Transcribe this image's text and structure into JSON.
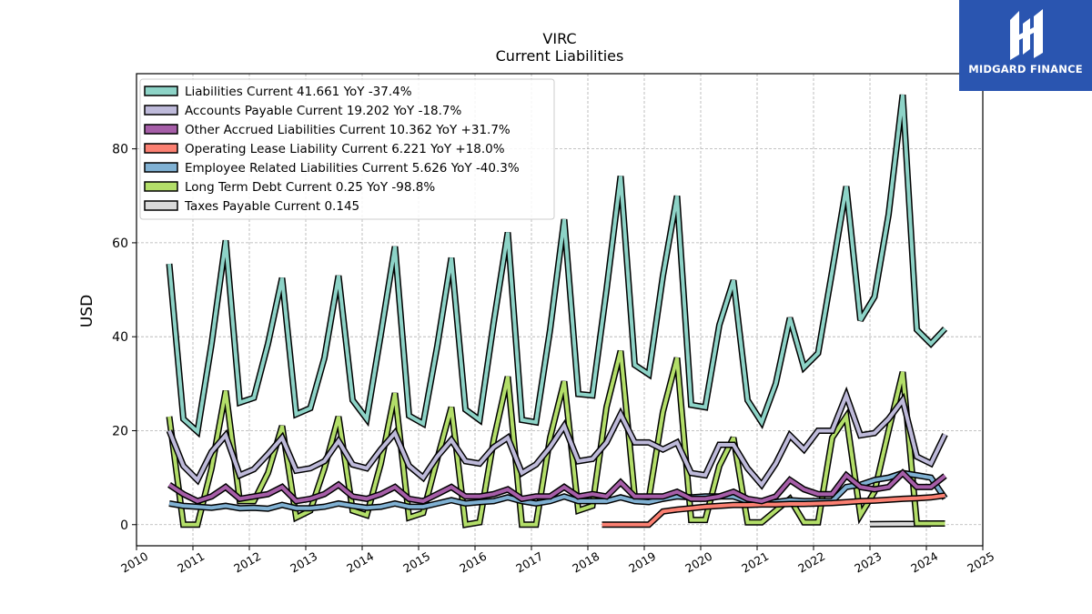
{
  "chart_data": {
    "type": "line",
    "title": "VIRC",
    "subtitle": "Current  Liabilities",
    "ylabel": "USD",
    "xlabel": "",
    "xlim": [
      2010,
      2025
    ],
    "ylim": [
      -4.5,
      96
    ],
    "x_ticks": [
      "2010",
      "2011",
      "2012",
      "2013",
      "2014",
      "2015",
      "2016",
      "2017",
      "2018",
      "2019",
      "2020",
      "2021",
      "2022",
      "2023",
      "2024",
      "2025"
    ],
    "y_ticks": [
      "0",
      "20",
      "40",
      "60",
      "80"
    ],
    "grid": true,
    "legend_position": "top-left",
    "series": [
      {
        "name": "Liabilities Current",
        "legend": "Liabilities Current  41.661 YoY -37.4%",
        "color": "#8dd3c7",
        "x": [
          2010.58,
          2010.83,
          2011.08,
          2011.33,
          2011.58,
          2011.83,
          2012.08,
          2012.33,
          2012.58,
          2012.83,
          2013.08,
          2013.33,
          2013.58,
          2013.83,
          2014.08,
          2014.33,
          2014.58,
          2014.83,
          2015.08,
          2015.33,
          2015.58,
          2015.83,
          2016.08,
          2016.33,
          2016.58,
          2016.83,
          2017.08,
          2017.33,
          2017.58,
          2017.83,
          2018.08,
          2018.33,
          2018.58,
          2018.83,
          2019.08,
          2019.33,
          2019.58,
          2019.83,
          2020.08,
          2020.33,
          2020.58,
          2020.83,
          2021.08,
          2021.33,
          2021.58,
          2021.83,
          2022.08,
          2022.33,
          2022.58,
          2022.83,
          2023.08,
          2023.33,
          2023.58,
          2023.83,
          2024.08,
          2024.33
        ],
        "values": [
          55.5,
          22.5,
          19.8,
          38.5,
          60.5,
          26.0,
          27.0,
          38.5,
          52.5,
          23.5,
          24.8,
          35.5,
          53.0,
          26.5,
          22.5,
          40.5,
          59.2,
          23.2,
          21.5,
          38.0,
          56.8,
          24.5,
          22.3,
          43.0,
          62.2,
          22.3,
          21.8,
          41.5,
          65.0,
          27.8,
          27.5,
          50.0,
          74.2,
          34.0,
          32.0,
          53.0,
          70.0,
          25.5,
          25.0,
          42.5,
          52.0,
          26.5,
          21.8,
          30.0,
          44.0,
          33.5,
          36.5,
          54.0,
          72.0,
          43.5,
          48.5,
          66.0,
          91.5,
          41.5,
          38.5,
          41.7
        ]
      },
      {
        "name": "Accounts Payable Current",
        "legend": "Accounts Payable Current  19.202 YoY -18.7%",
        "color": "#bebada",
        "x": [
          2010.58,
          2010.83,
          2011.08,
          2011.33,
          2011.58,
          2011.83,
          2012.08,
          2012.33,
          2012.58,
          2012.83,
          2013.08,
          2013.33,
          2013.58,
          2013.83,
          2014.08,
          2014.33,
          2014.58,
          2014.83,
          2015.08,
          2015.33,
          2015.58,
          2015.83,
          2016.08,
          2016.33,
          2016.58,
          2016.83,
          2017.08,
          2017.33,
          2017.58,
          2017.83,
          2018.08,
          2018.33,
          2018.58,
          2018.83,
          2019.08,
          2019.33,
          2019.58,
          2019.83,
          2020.08,
          2020.33,
          2020.58,
          2020.83,
          2021.08,
          2021.33,
          2021.58,
          2021.83,
          2022.08,
          2022.33,
          2022.58,
          2022.83,
          2023.08,
          2023.33,
          2023.58,
          2023.83,
          2024.08,
          2024.33
        ],
        "values": [
          20.0,
          12.5,
          9.5,
          15.5,
          19.0,
          10.5,
          11.8,
          15.0,
          18.5,
          11.5,
          12.0,
          13.5,
          17.8,
          12.8,
          12.0,
          16.0,
          19.5,
          12.5,
          10.0,
          14.5,
          18.0,
          13.5,
          13.0,
          16.5,
          18.5,
          11.0,
          12.8,
          16.5,
          21.0,
          13.5,
          14.0,
          17.5,
          23.5,
          17.5,
          17.5,
          16.0,
          17.5,
          11.0,
          10.5,
          17.0,
          17.0,
          12.0,
          8.5,
          13.0,
          19.0,
          16.0,
          20.0,
          20.0,
          27.5,
          19.0,
          19.5,
          22.5,
          26.5,
          14.5,
          13.0,
          19.2
        ]
      },
      {
        "name": "Other Accrued Liabilities Current",
        "legend": "Other Accrued Liabilities Current  10.362 YoY +31.7%",
        "color": "#a65ea8",
        "x": [
          2010.58,
          2010.83,
          2011.08,
          2011.33,
          2011.58,
          2011.83,
          2012.08,
          2012.33,
          2012.58,
          2012.83,
          2013.08,
          2013.33,
          2013.58,
          2013.83,
          2014.08,
          2014.33,
          2014.58,
          2014.83,
          2015.08,
          2015.33,
          2015.58,
          2015.83,
          2016.08,
          2016.33,
          2016.58,
          2016.83,
          2017.08,
          2017.33,
          2017.58,
          2017.83,
          2018.08,
          2018.33,
          2018.58,
          2018.83,
          2019.08,
          2019.33,
          2019.58,
          2019.83,
          2020.08,
          2020.33,
          2020.58,
          2020.83,
          2021.08,
          2021.33,
          2021.58,
          2021.83,
          2022.08,
          2022.33,
          2022.58,
          2022.83,
          2023.08,
          2023.33,
          2023.58,
          2023.83,
          2024.08,
          2024.33
        ],
        "values": [
          8.5,
          6.5,
          5.0,
          6.0,
          8.0,
          5.5,
          6.0,
          6.5,
          8.0,
          5.0,
          5.5,
          6.5,
          8.5,
          6.0,
          5.5,
          6.5,
          8.0,
          5.5,
          5.0,
          6.5,
          8.0,
          6.0,
          6.0,
          6.5,
          7.5,
          5.5,
          6.0,
          6.0,
          8.0,
          6.0,
          6.5,
          6.0,
          9.0,
          6.0,
          6.0,
          6.0,
          7.0,
          5.5,
          5.5,
          6.0,
          7.0,
          5.5,
          5.0,
          6.0,
          9.5,
          7.5,
          6.5,
          6.5,
          10.5,
          8.0,
          7.5,
          8.0,
          11.0,
          8.0,
          8.0,
          10.4
        ]
      },
      {
        "name": "Operating Lease Liability Current",
        "legend": "Operating Lease Liability Current  6.221 YoY +18.0%",
        "color": "#fb8072",
        "x": [
          2018.25,
          2018.58,
          2018.83,
          2019.08,
          2019.33,
          2019.58,
          2019.83,
          2020.08,
          2020.33,
          2020.58,
          2020.83,
          2021.08,
          2021.33,
          2021.58,
          2021.83,
          2022.08,
          2022.33,
          2022.58,
          2022.83,
          2023.08,
          2023.33,
          2023.58,
          2023.83,
          2024.08,
          2024.33
        ],
        "values": [
          0.0,
          0.0,
          0.0,
          0.0,
          2.8,
          3.2,
          3.5,
          3.8,
          4.0,
          4.2,
          4.2,
          4.3,
          4.3,
          4.4,
          4.4,
          4.5,
          4.6,
          4.8,
          5.0,
          5.1,
          5.3,
          5.5,
          5.6,
          5.8,
          6.2
        ]
      },
      {
        "name": "Employee Related Liabilities Current",
        "legend": "Employee Related Liabilities Current  5.626 YoY -40.3%",
        "color": "#80b1d3",
        "x": [
          2010.58,
          2010.83,
          2011.08,
          2011.33,
          2011.58,
          2011.83,
          2012.08,
          2012.33,
          2012.58,
          2012.83,
          2013.08,
          2013.33,
          2013.58,
          2013.83,
          2014.08,
          2014.33,
          2014.58,
          2014.83,
          2015.08,
          2015.33,
          2015.58,
          2015.83,
          2016.08,
          2016.33,
          2016.58,
          2016.83,
          2017.08,
          2017.33,
          2017.58,
          2017.83,
          2018.08,
          2018.33,
          2018.58,
          2018.83,
          2019.08,
          2019.33,
          2019.58,
          2019.83,
          2020.08,
          2020.33,
          2020.58,
          2020.83,
          2021.08,
          2021.33,
          2021.58,
          2021.83,
          2022.08,
          2022.33,
          2022.58,
          2022.83,
          2023.08,
          2023.33,
          2023.58,
          2023.83,
          2024.08,
          2024.33
        ],
        "values": [
          4.5,
          4.0,
          3.8,
          3.6,
          4.0,
          3.5,
          3.6,
          3.4,
          4.2,
          3.5,
          3.5,
          3.8,
          4.5,
          4.0,
          3.6,
          3.8,
          4.5,
          3.8,
          3.8,
          4.5,
          5.2,
          4.5,
          4.8,
          5.0,
          5.8,
          5.0,
          4.5,
          5.0,
          6.0,
          5.0,
          5.0,
          5.0,
          5.8,
          5.0,
          4.8,
          5.5,
          6.0,
          5.8,
          6.0,
          6.0,
          6.0,
          5.0,
          4.5,
          4.8,
          5.2,
          5.0,
          5.0,
          5.0,
          8.0,
          8.5,
          9.5,
          10.0,
          11.0,
          10.5,
          10.0,
          5.6
        ]
      },
      {
        "name": "Long Term Debt Current",
        "legend": "Long Term Debt Current  0.25 YoY -98.8%",
        "color": "#b3de69",
        "x": [
          2010.58,
          2010.83,
          2011.08,
          2011.33,
          2011.58,
          2011.83,
          2012.08,
          2012.33,
          2012.58,
          2012.83,
          2013.08,
          2013.33,
          2013.58,
          2013.83,
          2014.08,
          2014.33,
          2014.58,
          2014.83,
          2015.08,
          2015.33,
          2015.58,
          2015.83,
          2016.08,
          2016.33,
          2016.58,
          2016.83,
          2017.08,
          2017.33,
          2017.58,
          2017.83,
          2018.08,
          2018.33,
          2018.58,
          2018.83,
          2019.08,
          2019.33,
          2019.58,
          2019.83,
          2020.08,
          2020.33,
          2020.58,
          2020.83,
          2021.08,
          2021.33,
          2021.58,
          2021.83,
          2022.08,
          2022.33,
          2022.58,
          2022.83,
          2023.08,
          2023.33,
          2023.58,
          2023.83,
          2024.08,
          2024.33
        ],
        "values": [
          23.0,
          0.0,
          0.0,
          12.0,
          28.5,
          5.0,
          5.0,
          11.0,
          21.0,
          1.5,
          3.0,
          12.0,
          23.0,
          3.0,
          2.0,
          13.0,
          28.0,
          1.5,
          2.5,
          14.0,
          25.0,
          0.0,
          0.5,
          18.0,
          31.5,
          0.0,
          0.0,
          18.5,
          30.5,
          3.0,
          4.0,
          25.0,
          37.0,
          6.0,
          5.5,
          24.0,
          35.5,
          1.0,
          1.0,
          12.5,
          18.5,
          0.5,
          0.5,
          3.0,
          5.5,
          0.5,
          0.5,
          18.5,
          23.0,
          2.0,
          7.0,
          20.0,
          32.5,
          0.25,
          0.25,
          0.25
        ]
      },
      {
        "name": "Taxes Payable Current",
        "legend": "Taxes Payable Current  0.145",
        "color": "#d9d9d9",
        "x": [
          2023.0,
          2023.25,
          2023.58,
          2024.08
        ],
        "values": [
          0.1,
          0.12,
          0.14,
          0.145
        ]
      }
    ]
  },
  "logo": {
    "text": "MIDGARD FINANCE",
    "color": "#2a55b0"
  }
}
